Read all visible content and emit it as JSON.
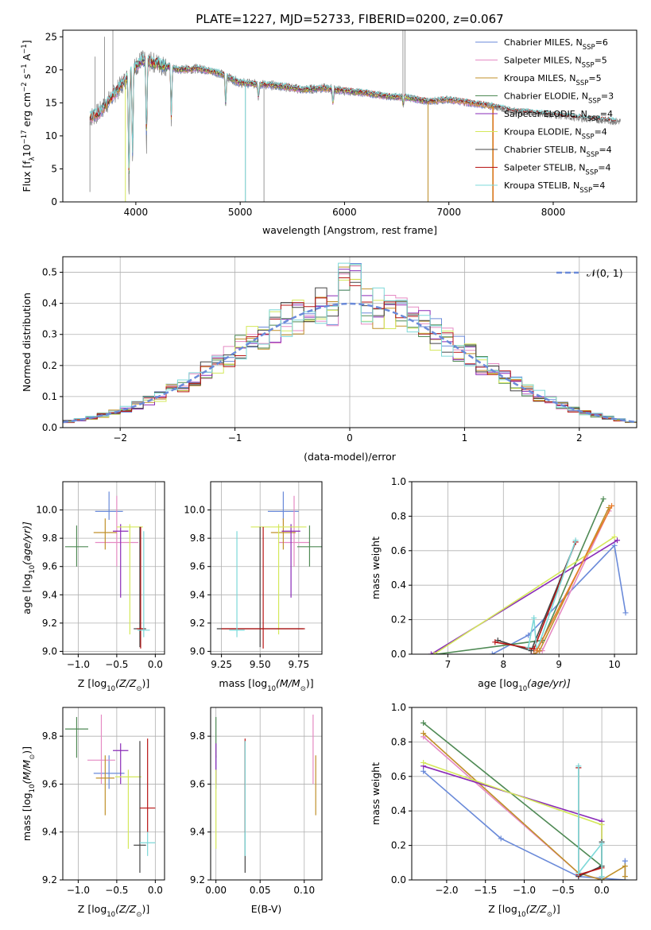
{
  "figure_title": "PLATE=1227, MJD=52733, FIBERID=0200, z=0.067",
  "colors": {
    "Chabrier MILES": "#6a8ad9",
    "Salpeter MILES": "#e58ac3",
    "Kroupa MILES": "#c0902a",
    "Chabrier ELODIE": "#4f8a55",
    "Salpeter ELODIE": "#8a2bb8",
    "Kroupa ELODIE": "#d4e85a",
    "Chabrier STELIB": "#444444",
    "Salpeter STELIB": "#b81414",
    "Kroupa STELIB": "#7dd8d8",
    "data": "#808080",
    "orange_model": "#e87c2c",
    "gauss": "#6a8ad9"
  },
  "chart_data": [
    {
      "id": "spectrum",
      "type": "line",
      "xlabel": "wavelength [Angstrom, rest frame]",
      "ylabel": "Flux [f",
      "ylabel_parts": [
        "Flux [f",
        "λ",
        "10",
        "−17",
        " erg cm",
        "−2",
        " s",
        "−1",
        " A",
        "−1",
        "]"
      ],
      "xlim": [
        3300,
        8800
      ],
      "ylim": [
        0,
        26
      ],
      "xticks": [
        4000,
        5000,
        6000,
        7000,
        8000
      ],
      "yticks": [
        0,
        5,
        10,
        15,
        20,
        25
      ],
      "legend_loc": "upper right",
      "legend": [
        {
          "name": "Chabrier MILES, N",
          "sub": "SSP",
          "tail": "=6",
          "color_key": "Chabrier MILES"
        },
        {
          "name": "Salpeter MILES, N",
          "sub": "SSP",
          "tail": "=5",
          "color_key": "Salpeter MILES"
        },
        {
          "name": "Kroupa MILES, N",
          "sub": "SSP",
          "tail": "=5",
          "color_key": "Kroupa MILES"
        },
        {
          "name": "Chabrier ELODIE, N",
          "sub": "SSP",
          "tail": "=3",
          "color_key": "Chabrier ELODIE"
        },
        {
          "name": "Salpeter ELODIE, N",
          "sub": "SSP",
          "tail": "=4",
          "color_key": "Salpeter ELODIE"
        },
        {
          "name": "Kroupa ELODIE, N",
          "sub": "SSP",
          "tail": "=4",
          "color_key": "Kroupa ELODIE"
        },
        {
          "name": "Chabrier STELIB, N",
          "sub": "SSP",
          "tail": "=4",
          "color_key": "Chabrier STELIB"
        },
        {
          "name": "Salpeter STELIB, N",
          "sub": "SSP",
          "tail": "=4",
          "color_key": "Salpeter STELIB"
        },
        {
          "name": "Kroupa STELIB, N",
          "sub": "SSP",
          "tail": "=4",
          "color_key": "Kroupa STELIB"
        }
      ],
      "continuum": [
        [
          3560,
          12.8
        ],
        [
          3650,
          13.5
        ],
        [
          3750,
          15.5
        ],
        [
          3850,
          17.5
        ],
        [
          3950,
          19.5
        ],
        [
          4050,
          21.5
        ],
        [
          4200,
          21.0
        ],
        [
          4400,
          20.0
        ],
        [
          4600,
          20.2
        ],
        [
          4800,
          19.5
        ],
        [
          5000,
          18.0
        ],
        [
          5200,
          17.8
        ],
        [
          5400,
          17.5
        ],
        [
          5600,
          17.0
        ],
        [
          5800,
          17.2
        ],
        [
          6000,
          16.8
        ],
        [
          6200,
          16.5
        ],
        [
          6400,
          16.0
        ],
        [
          6600,
          15.8
        ],
        [
          6800,
          15.2
        ],
        [
          7000,
          15.5
        ],
        [
          7200,
          15.0
        ],
        [
          7400,
          14.5
        ],
        [
          7600,
          13.8
        ],
        [
          7800,
          13.5
        ],
        [
          8000,
          13.2
        ],
        [
          8200,
          12.8
        ],
        [
          8400,
          12.5
        ],
        [
          8600,
          12.2
        ]
      ],
      "absorption_lines": [
        [
          3934,
          0
        ],
        [
          3969,
          5
        ],
        [
          4102,
          7.5
        ],
        [
          4340,
          12
        ],
        [
          4861,
          14
        ],
        [
          5175,
          15.5
        ],
        [
          5890,
          14.5
        ],
        [
          6563,
          14.5
        ]
      ],
      "spikes": [
        [
          3560,
          1.5
        ],
        [
          3610,
          22
        ],
        [
          3700,
          25
        ],
        [
          3780,
          26
        ],
        [
          5228,
          0
        ],
        [
          5050,
          0
        ],
        [
          6560,
          26
        ],
        [
          6580,
          26
        ],
        [
          6800,
          0
        ],
        [
          7420,
          0
        ]
      ]
    },
    {
      "id": "residuals",
      "type": "line",
      "xlabel": "(data-model)/error",
      "ylabel": "Normed distribution",
      "xlim": [
        -2.5,
        2.5
      ],
      "ylim": [
        0,
        0.55
      ],
      "xticks": [
        -2,
        -1,
        0,
        1,
        2
      ],
      "yticks": [
        0.0,
        0.1,
        0.2,
        0.3,
        0.4,
        0.5
      ],
      "legend_label": "𝒩(0, 1)",
      "legend_loc": "upper right",
      "grid": true,
      "bin_width": 0.1
    },
    {
      "id": "age_vs_Z",
      "type": "scatter",
      "xlabel": "Z [log",
      "xlabel_parts": [
        "Z [log",
        "10",
        "(Z/Z",
        "⊙",
        ")]"
      ],
      "ylabel_parts": [
        "age  [log",
        "10",
        "(age/yr)]"
      ],
      "xlim": [
        -1.2,
        0.12
      ],
      "ylim": [
        8.98,
        10.2
      ],
      "xticks": [
        -1.0,
        -0.5,
        0.0
      ],
      "xtick_labels": [
        "−1.0",
        "−0.5",
        "0.0"
      ],
      "yticks": [
        9.0,
        9.2,
        9.4,
        9.6,
        9.8,
        10.0
      ],
      "grid": true,
      "points": [
        {
          "key": "Chabrier MILES",
          "x": -0.6,
          "xerr": 0.18,
          "y": 9.99,
          "ylo": 9.93,
          "yhi": 10.13
        },
        {
          "key": "Salpeter MILES",
          "x": -0.5,
          "xerr": 0.28,
          "y": 9.77,
          "ylo": 9.6,
          "yhi": 10.1
        },
        {
          "key": "Kroupa MILES",
          "x": -0.65,
          "xerr": 0.15,
          "y": 9.84,
          "ylo": 9.72,
          "yhi": 9.94
        },
        {
          "key": "Chabrier ELODIE",
          "x": -1.02,
          "xerr": 0.15,
          "y": 9.74,
          "ylo": 9.6,
          "yhi": 9.89
        },
        {
          "key": "Salpeter ELODIE",
          "x": -0.45,
          "xerr": 0.1,
          "y": 9.85,
          "ylo": 9.38,
          "yhi": 9.9
        },
        {
          "key": "Kroupa ELODIE",
          "x": -0.33,
          "xerr": 0.17,
          "y": 9.88,
          "ylo": 9.12,
          "yhi": 9.9
        },
        {
          "key": "Chabrier STELIB",
          "x": -0.2,
          "xerr": 0.08,
          "y": 9.16,
          "ylo": 9.03,
          "yhi": 9.88
        },
        {
          "key": "Salpeter STELIB",
          "x": -0.19,
          "xerr": 0.05,
          "y": 9.16,
          "ylo": 9.02,
          "yhi": 9.88
        },
        {
          "key": "Kroupa STELIB",
          "x": -0.15,
          "xerr": 0.08,
          "y": 9.15,
          "ylo": 9.1,
          "yhi": 9.85
        }
      ]
    },
    {
      "id": "age_vs_mass",
      "type": "scatter",
      "xlabel_parts": [
        "mass [log",
        "10",
        "(M/M",
        "⊙",
        ")]"
      ],
      "xlim": [
        9.18,
        9.9
      ],
      "ylim": [
        8.98,
        10.2
      ],
      "xticks": [
        9.25,
        9.5,
        9.75
      ],
      "xtick_labels": [
        "9.25",
        "9.50",
        "9.75"
      ],
      "yticks": [
        9.0,
        9.2,
        9.4,
        9.6,
        9.8,
        10.0
      ],
      "grid": true,
      "points": [
        {
          "key": "Chabrier MILES",
          "x": 9.65,
          "xerr": 0.1,
          "y": 9.99,
          "ylo": 9.93,
          "yhi": 10.13
        },
        {
          "key": "Salpeter MILES",
          "x": 9.72,
          "xerr": 0.1,
          "y": 9.77,
          "ylo": 9.6,
          "yhi": 10.1
        },
        {
          "key": "Kroupa MILES",
          "x": 9.65,
          "xerr": 0.08,
          "y": 9.84,
          "ylo": 9.72,
          "yhi": 9.94
        },
        {
          "key": "Chabrier ELODIE",
          "x": 9.82,
          "xerr": 0.08,
          "y": 9.74,
          "ylo": 9.6,
          "yhi": 9.89
        },
        {
          "key": "Salpeter ELODIE",
          "x": 9.7,
          "xerr": 0.06,
          "y": 9.85,
          "ylo": 9.38,
          "yhi": 9.9
        },
        {
          "key": "Kroupa ELODIE",
          "x": 9.62,
          "xerr": 0.18,
          "y": 9.88,
          "ylo": 9.12,
          "yhi": 9.9
        },
        {
          "key": "Chabrier STELIB",
          "x": 9.5,
          "xerr": 0.28,
          "y": 9.16,
          "ylo": 9.03,
          "yhi": 9.88
        },
        {
          "key": "Salpeter STELIB",
          "x": 9.52,
          "xerr": 0.27,
          "y": 9.16,
          "ylo": 9.02,
          "yhi": 9.88
        },
        {
          "key": "Kroupa STELIB",
          "x": 9.35,
          "xerr": 0.05,
          "y": 9.15,
          "ylo": 9.1,
          "yhi": 9.85
        }
      ]
    },
    {
      "id": "weight_vs_age",
      "type": "line",
      "xlabel_parts": [
        "age  [log",
        "10",
        "(age/yr)]"
      ],
      "ylabel": "mass weight",
      "xlim": [
        6.35,
        10.4
      ],
      "ylim": [
        0,
        1.0
      ],
      "xticks": [
        7,
        8,
        9,
        10
      ],
      "yticks": [
        0.0,
        0.2,
        0.4,
        0.6,
        0.8,
        1.0
      ],
      "grid": true,
      "series": [
        {
          "key": "Chabrier MILES",
          "x": [
            7.8,
            8.45,
            10.0,
            10.2
          ],
          "y": [
            0.0,
            0.11,
            0.63,
            0.24
          ]
        },
        {
          "key": "Salpeter MILES",
          "x": [
            8.5,
            8.7,
            9.9
          ],
          "y": [
            0.0,
            0.02,
            0.83
          ]
        },
        {
          "key": "Kroupa MILES",
          "x": [
            8.55,
            8.65,
            9.9
          ],
          "y": [
            0.0,
            0.02,
            0.85
          ]
        },
        {
          "key": "Chabrier ELODIE",
          "x": [
            6.8,
            8.7,
            9.8
          ],
          "y": [
            0.0,
            0.08,
            0.9
          ]
        },
        {
          "key": "Salpeter ELODIE",
          "x": [
            6.7,
            10.05
          ],
          "y": [
            0.0,
            0.66
          ]
        },
        {
          "key": "Kroupa ELODIE",
          "x": [
            6.75,
            10.0
          ],
          "y": [
            0.0,
            0.68
          ]
        },
        {
          "key": "Chabrier STELIB",
          "x": [
            7.9,
            8.5,
            9.3
          ],
          "y": [
            0.08,
            0.02,
            0.65
          ]
        },
        {
          "key": "Salpeter STELIB",
          "x": [
            7.85,
            8.55,
            9.3
          ],
          "y": [
            0.07,
            0.03,
            0.65
          ]
        },
        {
          "key": "Kroupa STELIB",
          "x": [
            8.45,
            8.55,
            8.6,
            9.3
          ],
          "y": [
            0.04,
            0.21,
            0.02,
            0.66
          ]
        },
        {
          "key": "orange_model",
          "x": [
            8.6,
            9.95
          ],
          "y": [
            0.02,
            0.86
          ]
        }
      ]
    },
    {
      "id": "mass_vs_Z",
      "type": "scatter",
      "xlabel_parts": [
        "Z [log",
        "10",
        "(Z/Z",
        "⊙",
        ")]"
      ],
      "ylabel_parts": [
        "mass [log",
        "10",
        "(M/M",
        "⊙",
        ")]"
      ],
      "xlim": [
        -1.2,
        0.12
      ],
      "ylim": [
        9.2,
        9.92
      ],
      "xticks": [
        -1.0,
        -0.5,
        0.0
      ],
      "xtick_labels": [
        "−1.0",
        "−0.5",
        "0.0"
      ],
      "yticks": [
        9.2,
        9.4,
        9.6,
        9.8
      ],
      "grid": true,
      "points": [
        {
          "key": "Chabrier MILES",
          "x": -0.6,
          "xerr": 0.2,
          "y": 9.645,
          "ylo": 9.58,
          "yhi": 9.72
        },
        {
          "key": "Salpeter MILES",
          "x": -0.7,
          "xerr": 0.18,
          "y": 9.7,
          "ylo": 9.6,
          "yhi": 9.89
        },
        {
          "key": "Kroupa MILES",
          "x": -0.65,
          "xerr": 0.12,
          "y": 9.625,
          "ylo": 9.47,
          "yhi": 9.72
        },
        {
          "key": "Chabrier ELODIE",
          "x": -1.02,
          "xerr": 0.15,
          "y": 9.83,
          "ylo": 9.71,
          "yhi": 9.88
        },
        {
          "key": "Salpeter ELODIE",
          "x": -0.45,
          "xerr": 0.1,
          "y": 9.74,
          "ylo": 9.6,
          "yhi": 9.77
        },
        {
          "key": "Kroupa ELODIE",
          "x": -0.35,
          "xerr": 0.17,
          "y": 9.63,
          "ylo": 9.33,
          "yhi": 9.66
        },
        {
          "key": "Chabrier STELIB",
          "x": -0.2,
          "xerr": 0.08,
          "y": 9.345,
          "ylo": 9.23,
          "yhi": 9.78
        },
        {
          "key": "Salpeter STELIB",
          "x": -0.1,
          "xerr": 0.1,
          "y": 9.5,
          "ylo": 9.4,
          "yhi": 9.79
        },
        {
          "key": "Kroupa STELIB",
          "x": -0.1,
          "xerr": 0.1,
          "y": 9.355,
          "ylo": 9.3,
          "yhi": 9.4
        }
      ]
    },
    {
      "id": "mass_vs_ebv",
      "type": "scatter",
      "xlabel": "E(B-V)",
      "xlim": [
        -0.006,
        0.12
      ],
      "ylim": [
        9.2,
        9.92
      ],
      "xticks": [
        0.0,
        0.05,
        0.1
      ],
      "xtick_labels": [
        "0.00",
        "0.05",
        "0.10"
      ],
      "yticks": [
        9.2,
        9.4,
        9.6,
        9.8
      ],
      "grid": true,
      "points": [
        {
          "key": "Chabrier MILES",
          "x": 0.0,
          "xerr": 0.0,
          "y": 9.645,
          "ylo": 9.58,
          "yhi": 9.72
        },
        {
          "key": "Salpeter MILES",
          "x": 0.11,
          "xerr": 0.0,
          "y": 9.7,
          "ylo": 9.6,
          "yhi": 9.89
        },
        {
          "key": "Kroupa MILES",
          "x": 0.113,
          "xerr": 0.0,
          "y": 9.625,
          "ylo": 9.47,
          "yhi": 9.72
        },
        {
          "key": "Chabrier ELODIE",
          "x": 0.0,
          "xerr": 0.0,
          "y": 9.83,
          "ylo": 9.71,
          "yhi": 9.88
        },
        {
          "key": "Salpeter ELODIE",
          "x": 0.0,
          "xerr": 0.0,
          "y": 9.74,
          "ylo": 9.6,
          "yhi": 9.77
        },
        {
          "key": "Kroupa ELODIE",
          "x": 0.0,
          "xerr": 0.0,
          "y": 9.63,
          "ylo": 9.33,
          "yhi": 9.66
        },
        {
          "key": "Chabrier STELIB",
          "x": 0.033,
          "xerr": 0.0,
          "y": 9.345,
          "ylo": 9.23,
          "yhi": 9.78
        },
        {
          "key": "Salpeter STELIB",
          "x": 0.033,
          "xerr": 0.0,
          "y": 9.5,
          "ylo": 9.4,
          "yhi": 9.79
        },
        {
          "key": "Kroupa STELIB",
          "x": 0.033,
          "xerr": 0.0,
          "y": 9.355,
          "ylo": 9.3,
          "yhi": 9.78
        }
      ]
    },
    {
      "id": "weight_vs_Z",
      "type": "line",
      "xlabel_parts": [
        "Z [log",
        "10",
        "(Z/Z",
        "⊙",
        ")]"
      ],
      "ylabel": "mass weight",
      "xlim": [
        -2.45,
        0.45
      ],
      "ylim": [
        0,
        1.0
      ],
      "xticks": [
        -2.0,
        -1.5,
        -1.0,
        -0.5,
        0.0
      ],
      "xtick_labels": [
        "−2.0",
        "−1.5",
        "−1.0",
        "−0.5",
        "0.0"
      ],
      "yticks": [
        0.0,
        0.2,
        0.4,
        0.6,
        0.8,
        1.0
      ],
      "grid": true,
      "series": [
        {
          "key": "Chabrier MILES",
          "x": [
            -2.3,
            -1.3,
            -0.3,
            0.3,
            0.3
          ],
          "y": [
            0.63,
            0.24,
            0.02,
            0.0,
            0.11
          ]
        },
        {
          "key": "Salpeter MILES",
          "x": [
            -2.3,
            -0.3,
            0.0,
            0.0
          ],
          "y": [
            0.83,
            0.04,
            0.0,
            0.02
          ]
        },
        {
          "key": "Kroupa MILES",
          "x": [
            -2.3,
            -0.3,
            0.0,
            0.3,
            0.3
          ],
          "y": [
            0.85,
            0.04,
            0.0,
            0.08,
            0.02
          ]
        },
        {
          "key": "Chabrier ELODIE",
          "x": [
            -2.3,
            0.0,
            0.0
          ],
          "y": [
            0.91,
            0.08,
            0.0
          ]
        },
        {
          "key": "Salpeter ELODIE",
          "x": [
            -2.3,
            0.0,
            0.0
          ],
          "y": [
            0.66,
            0.34,
            0.0
          ]
        },
        {
          "key": "Kroupa ELODIE",
          "x": [
            -2.3,
            0.0,
            0.0
          ],
          "y": [
            0.68,
            0.32,
            0.0
          ]
        },
        {
          "key": "Chabrier STELIB",
          "x": [
            -0.3,
            -0.3,
            0.0,
            0.0
          ],
          "y": [
            0.65,
            0.02,
            0.08,
            0.22
          ]
        },
        {
          "key": "Salpeter STELIB",
          "x": [
            -0.3,
            -0.3,
            0.0
          ],
          "y": [
            0.65,
            0.03,
            0.07
          ]
        },
        {
          "key": "Kroupa STELIB",
          "x": [
            -0.3,
            -0.3,
            0.0,
            0.0
          ],
          "y": [
            0.66,
            0.04,
            0.21,
            0.02
          ]
        }
      ]
    }
  ]
}
